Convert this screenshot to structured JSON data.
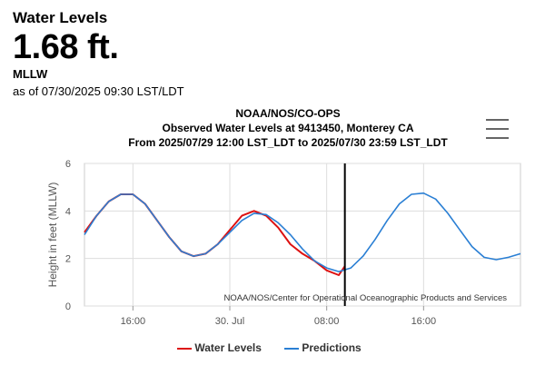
{
  "header": {
    "title": "Water Levels",
    "value": "1.68 ft.",
    "datum": "MLLW",
    "as_of": "as of 07/30/2025 09:30 LST/LDT"
  },
  "menu_icon": "hamburger-menu-icon",
  "chart_data": {
    "type": "line",
    "title": "NOAA/NOS/CO-OPS",
    "subtitle": "Observed Water Levels at 9413450, Monterey CA",
    "subtitle2": "From 2025/07/29 12:00 LST_LDT to 2025/07/30 23:59 LST_LDT",
    "ylabel": "Height in feet (MLLW)",
    "ylim": [
      0,
      6
    ],
    "yticks": [
      0,
      2,
      4,
      6
    ],
    "xlim": [
      "2025-07-29 12:00",
      "2025-07-31 00:00"
    ],
    "xticks": [
      {
        "x": "2025-07-29 16:00",
        "label": "16:00"
      },
      {
        "x": "2025-07-30 00:00",
        "label": "30. Jul"
      },
      {
        "x": "2025-07-30 08:00",
        "label": "08:00"
      },
      {
        "x": "2025-07-30 16:00",
        "label": "16:00"
      }
    ],
    "grid": true,
    "credits": "NOAA/NOS/Center for Operational Oceanographic Products and Services",
    "now_marker": "2025-07-30 09:30",
    "legend_position": "bottom-center",
    "series": [
      {
        "name": "Water Levels",
        "color": "#dd1111",
        "x": [
          "2025-07-29 12:00",
          "2025-07-29 13:00",
          "2025-07-29 14:00",
          "2025-07-29 15:00",
          "2025-07-29 16:00",
          "2025-07-29 17:00",
          "2025-07-29 18:00",
          "2025-07-29 19:00",
          "2025-07-29 20:00",
          "2025-07-29 21:00",
          "2025-07-29 22:00",
          "2025-07-29 23:00",
          "2025-07-30 00:00",
          "2025-07-30 01:00",
          "2025-07-30 02:00",
          "2025-07-30 03:00",
          "2025-07-30 04:00",
          "2025-07-30 05:00",
          "2025-07-30 06:00",
          "2025-07-30 07:00",
          "2025-07-30 08:00",
          "2025-07-30 09:00",
          "2025-07-30 09:30"
        ],
        "values": [
          3.1,
          3.8,
          4.4,
          4.7,
          4.7,
          4.3,
          3.6,
          2.9,
          2.3,
          2.1,
          2.2,
          2.6,
          3.2,
          3.8,
          4.0,
          3.8,
          3.3,
          2.6,
          2.2,
          1.9,
          1.5,
          1.3,
          1.68
        ]
      },
      {
        "name": "Predictions",
        "color": "#2a7fd4",
        "x": [
          "2025-07-29 12:00",
          "2025-07-29 13:00",
          "2025-07-29 14:00",
          "2025-07-29 15:00",
          "2025-07-29 16:00",
          "2025-07-29 17:00",
          "2025-07-29 18:00",
          "2025-07-29 19:00",
          "2025-07-29 20:00",
          "2025-07-29 21:00",
          "2025-07-29 22:00",
          "2025-07-29 23:00",
          "2025-07-30 00:00",
          "2025-07-30 01:00",
          "2025-07-30 02:00",
          "2025-07-30 03:00",
          "2025-07-30 04:00",
          "2025-07-30 05:00",
          "2025-07-30 06:00",
          "2025-07-30 07:00",
          "2025-07-30 08:00",
          "2025-07-30 09:00",
          "2025-07-30 10:00",
          "2025-07-30 11:00",
          "2025-07-30 12:00",
          "2025-07-30 13:00",
          "2025-07-30 14:00",
          "2025-07-30 15:00",
          "2025-07-30 16:00",
          "2025-07-30 17:00",
          "2025-07-30 18:00",
          "2025-07-30 19:00",
          "2025-07-30 20:00",
          "2025-07-30 21:00",
          "2025-07-30 22:00",
          "2025-07-30 23:00",
          "2025-07-31 00:00"
        ],
        "values": [
          3.0,
          3.8,
          4.4,
          4.7,
          4.7,
          4.3,
          3.6,
          2.9,
          2.3,
          2.1,
          2.2,
          2.6,
          3.1,
          3.6,
          3.9,
          3.85,
          3.5,
          3.0,
          2.4,
          1.9,
          1.6,
          1.45,
          1.6,
          2.1,
          2.8,
          3.6,
          4.3,
          4.7,
          4.75,
          4.5,
          3.9,
          3.2,
          2.5,
          2.05,
          1.95,
          2.05,
          2.2
        ]
      }
    ]
  }
}
